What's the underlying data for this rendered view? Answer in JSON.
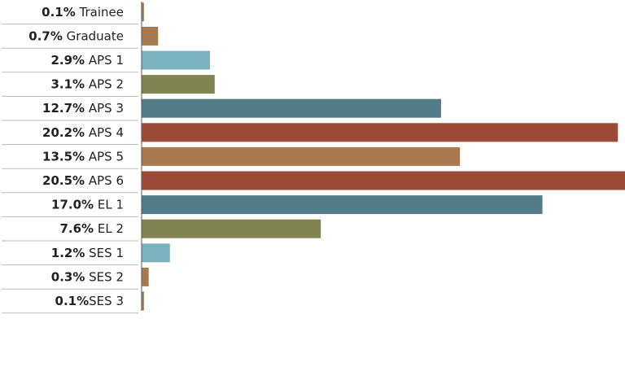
{
  "chart_data": {
    "type": "bar",
    "orientation": "horizontal",
    "title": "",
    "xlabel": "",
    "ylabel": "",
    "xlim": [
      0,
      20.5
    ],
    "grid": false,
    "legend": "none",
    "categories": [
      {
        "percent": "0.1%",
        "name": "Trainee"
      },
      {
        "percent": "0.7%",
        "name": "Graduate"
      },
      {
        "percent": "2.9%",
        "name": "APS 1"
      },
      {
        "percent": "3.1%",
        "name": "APS 2"
      },
      {
        "percent": "12.7%",
        "name": "APS 3"
      },
      {
        "percent": "20.2%",
        "name": "APS 4"
      },
      {
        "percent": "13.5%",
        "name": "APS 5"
      },
      {
        "percent": "20.5%",
        "name": "APS 6"
      },
      {
        "percent": "17.0%",
        "name": "EL 1"
      },
      {
        "percent": "7.6%",
        "name": "EL 2"
      },
      {
        "percent": "1.2%",
        "name": "SES 1"
      },
      {
        "percent": "0.3%",
        "name": "SES 2"
      },
      {
        "percent": "0.1%",
        "name": "SES 3",
        "joined": true
      }
    ],
    "values": [
      0.1,
      0.7,
      2.9,
      3.1,
      12.7,
      20.2,
      13.5,
      20.5,
      17.0,
      7.6,
      1.2,
      0.3,
      0.1
    ],
    "colors": [
      "#a8794f",
      "#a8794f",
      "#7ab3bd",
      "#7f8450",
      "#527d87",
      "#9b4a38",
      "#a8794f",
      "#9b4a38",
      "#527d87",
      "#7f8450",
      "#7ab3bd",
      "#a8794f",
      "#a8794f"
    ]
  }
}
